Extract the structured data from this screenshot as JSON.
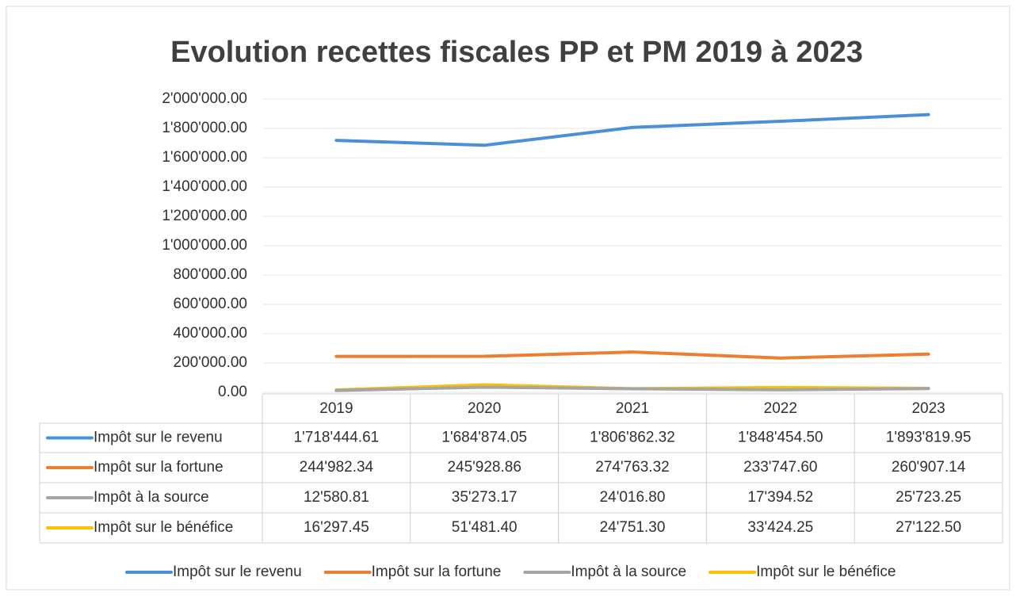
{
  "chart_data": {
    "type": "line",
    "title": "Evolution recettes fiscales PP et PM 2019 à 2023",
    "categories": [
      "2019",
      "2020",
      "2021",
      "2022",
      "2023"
    ],
    "series": [
      {
        "name": "Impôt sur le revenu",
        "color": "#4a90d9",
        "values": [
          1718444.61,
          1684874.05,
          1806862.32,
          1848454.5,
          1893819.95
        ],
        "value_labels": [
          "1'718'444.61",
          "1'684'874.05",
          "1'806'862.32",
          "1'848'454.50",
          "1'893'819.95"
        ]
      },
      {
        "name": "Impôt sur la fortune",
        "color": "#ed7d31",
        "values": [
          244982.34,
          245928.86,
          274763.32,
          233747.6,
          260907.14
        ],
        "value_labels": [
          "244'982.34",
          "245'928.86",
          "274'763.32",
          "233'747.60",
          "260'907.14"
        ]
      },
      {
        "name": "Impôt à la source",
        "color": "#a5a5a5",
        "values": [
          12580.81,
          35273.17,
          24016.8,
          17394.52,
          25723.25
        ],
        "value_labels": [
          "12'580.81",
          "35'273.17",
          "24'016.80",
          "17'394.52",
          "25'723.25"
        ]
      },
      {
        "name": "Impôt sur le bénéfice",
        "color": "#ffc000",
        "values": [
          16297.45,
          51481.4,
          24751.3,
          33424.25,
          27122.5
        ],
        "value_labels": [
          "16'297.45",
          "51'481.40",
          "24'751.30",
          "33'424.25",
          "27'122.50"
        ]
      }
    ],
    "ylim": [
      0,
      2000000
    ],
    "yticks": [
      {
        "value": 0,
        "label": "0.00"
      },
      {
        "value": 200000,
        "label": "200'000.00"
      },
      {
        "value": 400000,
        "label": "400'000.00"
      },
      {
        "value": 600000,
        "label": "600'000.00"
      },
      {
        "value": 800000,
        "label": "800'000.00"
      },
      {
        "value": 1000000,
        "label": "1'000'000.00"
      },
      {
        "value": 1200000,
        "label": "1'200'000.00"
      },
      {
        "value": 1400000,
        "label": "1'400'000.00"
      },
      {
        "value": 1600000,
        "label": "1'600'000.00"
      },
      {
        "value": 1800000,
        "label": "1'800'000.00"
      },
      {
        "value": 2000000,
        "label": "2'000'000.00"
      }
    ],
    "grid": true,
    "legend": "bottom"
  }
}
